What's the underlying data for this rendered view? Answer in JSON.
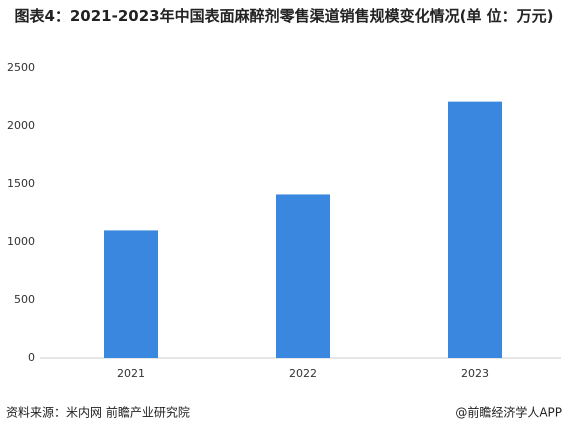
{
  "chart_data": {
    "type": "bar",
    "title": "图表4：2021-2023年中国表面麻醉剂零售渠道销售规模变化情况(单 位：万元)",
    "categories": [
      "2021",
      "2022",
      "2023"
    ],
    "values": [
      1100,
      1410,
      2210
    ],
    "color": "#3a87e0",
    "ylim": [
      0,
      2500
    ],
    "yticks": [
      0,
      500,
      1000,
      1500,
      2000,
      2500
    ],
    "grid": false,
    "source": "资料来源：米内网 前瞻产业研究院",
    "credit": "@前瞻经济学人APP"
  }
}
